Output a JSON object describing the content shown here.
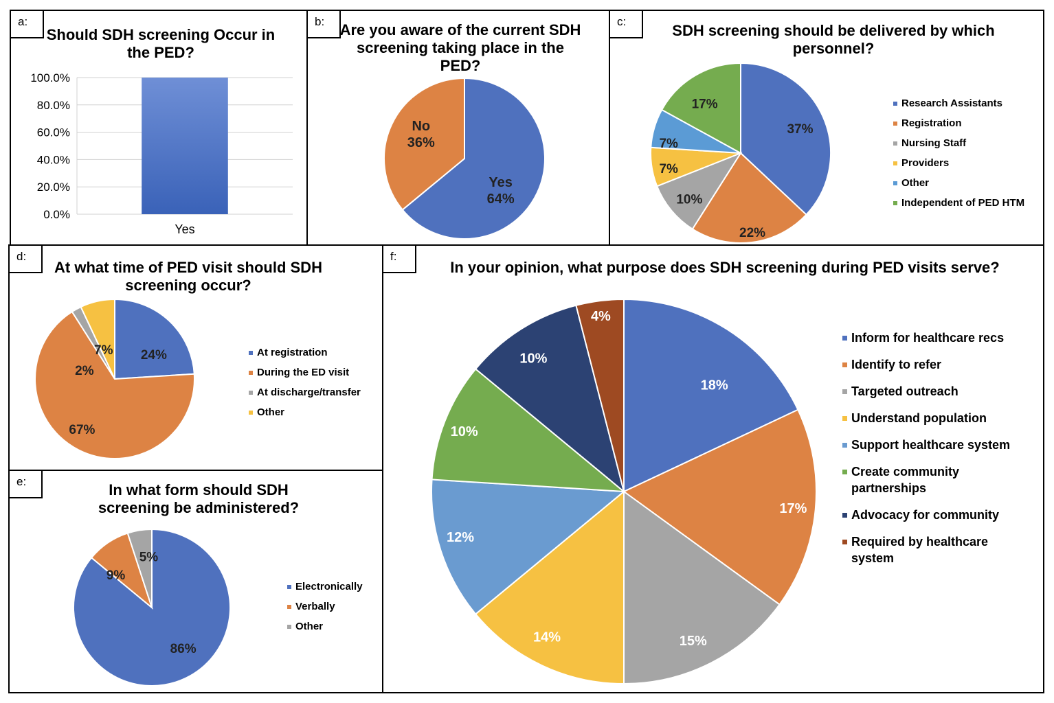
{
  "figure": {
    "panels": [
      {
        "letter": "a:",
        "title": "Should SDH screening Occur in the PED?"
      },
      {
        "letter": "b:",
        "title": "Are you aware of the current SDH screening taking place in the PED?"
      },
      {
        "letter": "c:",
        "title": "SDH screening should be delivered by which personnel?"
      },
      {
        "letter": "d:",
        "title": "At what time of PED visit should SDH screening occur?"
      },
      {
        "letter": "e:",
        "title": "In what form should SDH screening be administered?"
      },
      {
        "letter": "f:",
        "title": "In your opinion, what purpose does SDH screening during PED visits serve?"
      }
    ]
  },
  "chart_data": [
    {
      "id": "a",
      "type": "bar",
      "title": "Should SDH screening Occur in the PED?",
      "categories": [
        "Yes"
      ],
      "values": [
        100
      ],
      "ylim": [
        0,
        100
      ],
      "yticks": [
        "0.0%",
        "20.0%",
        "40.0%",
        "60.0%",
        "80.0%",
        "100.0%"
      ],
      "grid": true,
      "color": "#4472C4"
    },
    {
      "id": "b",
      "type": "pie",
      "title": "Are you aware of the current SDH screening taking place in the PED?",
      "labels": [
        "Yes",
        "No"
      ],
      "values": [
        64,
        36
      ],
      "data_labels": [
        "64%",
        "36%"
      ],
      "colors": [
        "#4F71BE",
        "#DD8344"
      ],
      "legend": "none"
    },
    {
      "id": "c",
      "type": "pie",
      "title": "SDH screening should be delivered by which personnel?",
      "labels": [
        "Research Assistants",
        "Registration",
        "Nursing Staff",
        "Providers",
        "Other",
        "Independent of PED HTM"
      ],
      "values": [
        37,
        22,
        10,
        7,
        7,
        17
      ],
      "data_labels": [
        "37%",
        "22%",
        "10%",
        "7%",
        "7%",
        "17%"
      ],
      "colors": [
        "#4F71BE",
        "#DD8344",
        "#A5A5A5",
        "#F6C142",
        "#5B9BD5",
        "#75AC4F"
      ],
      "legend": "right"
    },
    {
      "id": "d",
      "type": "pie",
      "title": "At what time of PED visit should SDH screening occur?",
      "labels": [
        "At registration",
        "During the ED visit",
        "At discharge/transfer",
        "Other"
      ],
      "values": [
        24,
        67,
        2,
        7
      ],
      "data_labels": [
        "24%",
        "67%",
        "2%",
        "7%"
      ],
      "colors": [
        "#4F71BE",
        "#DD8344",
        "#A5A5A5",
        "#F6C142"
      ],
      "legend": "right"
    },
    {
      "id": "e",
      "type": "pie",
      "title": "In what form should SDH screening be administered?",
      "labels": [
        "Electronically",
        "Verbally",
        "Other"
      ],
      "values": [
        86,
        9,
        5
      ],
      "data_labels": [
        "86%",
        "9%",
        "5%"
      ],
      "colors": [
        "#4F71BE",
        "#DD8344",
        "#A5A5A5"
      ],
      "legend": "right"
    },
    {
      "id": "f",
      "type": "pie",
      "title": "In your opinion, what purpose does SDH screening during PED visits serve?",
      "labels": [
        "Inform for healthcare recs",
        "Identify to refer",
        "Targeted outreach",
        "Understand population",
        "Support healthcare system",
        "Create community partnerships",
        "Advocacy for community",
        "Required by healthcare system"
      ],
      "values": [
        18,
        17,
        15,
        14,
        12,
        10,
        10,
        4
      ],
      "data_labels": [
        "18%",
        "17%",
        "15%",
        "14%",
        "12%",
        "10%",
        "10%",
        "4%"
      ],
      "colors": [
        "#4F71BE",
        "#DD8344",
        "#A5A5A5",
        "#F6C142",
        "#6A9BD0",
        "#75AC4F",
        "#2C4273",
        "#9E4A22"
      ],
      "legend": "right"
    }
  ]
}
